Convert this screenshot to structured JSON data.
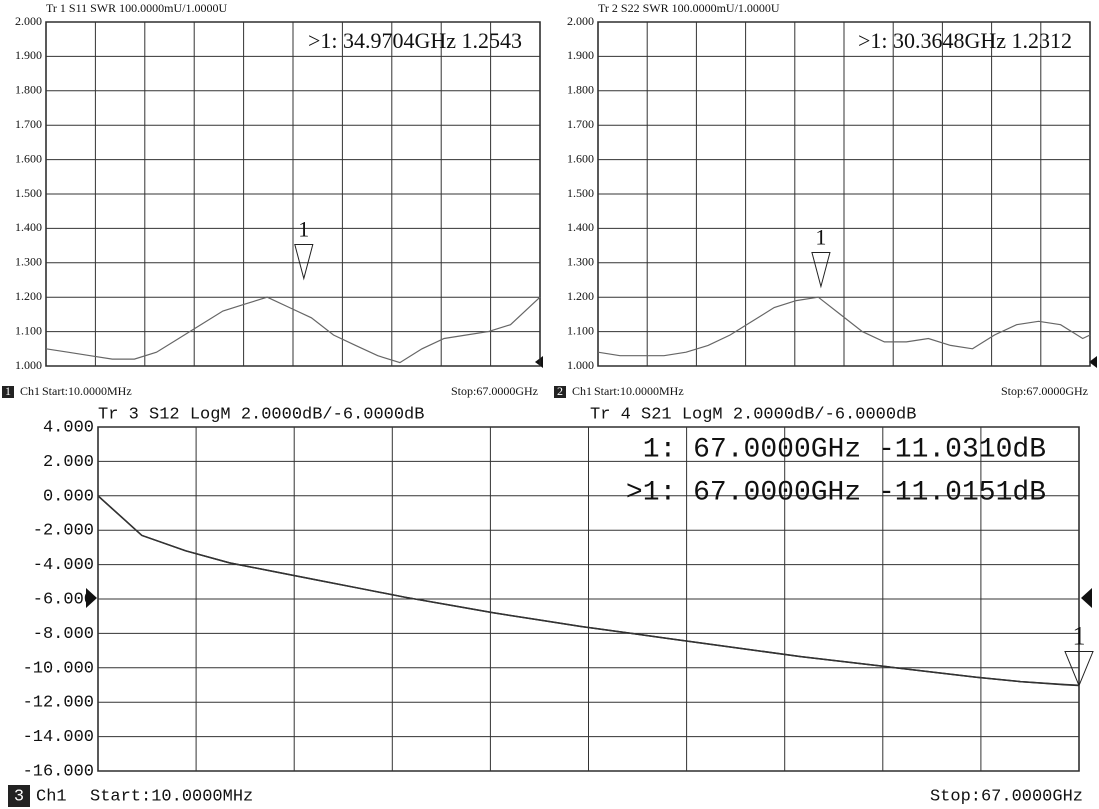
{
  "chart_data": [
    {
      "type": "line",
      "channel_number": "1",
      "channel": "Ch1",
      "start_label": "Start:10.0000MHz",
      "stop_label": "Stop:67.0000GHz",
      "x": [
        0.01,
        3,
        6,
        9,
        12,
        15,
        18,
        21,
        24,
        27,
        30,
        33,
        36,
        39,
        42,
        45,
        48,
        51,
        54,
        57,
        60,
        63,
        66,
        67
      ],
      "series": [
        {
          "name": "Tr 1  S11 SWR 100.0000mU/1.0000U",
          "color": "#666666",
          "values": [
            1.05,
            1.04,
            1.03,
            1.02,
            1.02,
            1.04,
            1.08,
            1.12,
            1.16,
            1.18,
            1.2,
            1.17,
            1.14,
            1.09,
            1.06,
            1.03,
            1.01,
            1.05,
            1.08,
            1.09,
            1.1,
            1.12,
            1.18,
            1.2
          ]
        }
      ],
      "marker": {
        "label": "1",
        "x": 34.9704,
        "value": 1.2543
      },
      "marker_readouts": [
        ">1:  34.9704GHz 1.2543"
      ],
      "xlim": [
        0.01,
        67
      ],
      "ylim": [
        1,
        2
      ],
      "yticks": [
        {
          "value": 1,
          "label": "1.000"
        },
        {
          "value": 1.1,
          "label": "1.100"
        },
        {
          "value": 1.2,
          "label": "1.200"
        },
        {
          "value": 1.3,
          "label": "1.300"
        },
        {
          "value": 1.4,
          "label": "1.400"
        },
        {
          "value": 1.5,
          "label": "1.500"
        },
        {
          "value": 1.6,
          "label": "1.600"
        },
        {
          "value": 1.7,
          "label": "1.700"
        },
        {
          "value": 1.8,
          "label": "1.800"
        },
        {
          "value": 1.9,
          "label": "1.900"
        },
        {
          "value": 2,
          "label": "2.000"
        }
      ],
      "grid": true
    },
    {
      "type": "line",
      "channel_number": "2",
      "channel": "Ch1",
      "start_label": "Start:10.0000MHz",
      "stop_label": "Stop:67.0000GHz",
      "x": [
        0.01,
        3,
        6,
        9,
        12,
        15,
        18,
        21,
        24,
        27,
        30,
        33,
        36,
        39,
        42,
        45,
        48,
        51,
        54,
        57,
        60,
        63,
        66,
        67
      ],
      "series": [
        {
          "name": "Tr 2  S22 SWR 100.0000mU/1.0000U",
          "color": "#666666",
          "values": [
            1.04,
            1.03,
            1.03,
            1.03,
            1.04,
            1.06,
            1.09,
            1.13,
            1.17,
            1.19,
            1.2,
            1.15,
            1.1,
            1.07,
            1.07,
            1.08,
            1.06,
            1.05,
            1.09,
            1.12,
            1.13,
            1.12,
            1.08,
            1.09
          ]
        }
      ],
      "marker": {
        "label": "1",
        "x": 30.3648,
        "value": 1.2312
      },
      "marker_readouts": [
        ">1:  30.3648GHz 1.2312"
      ],
      "xlim": [
        0.01,
        67
      ],
      "ylim": [
        1,
        2
      ],
      "yticks": [
        {
          "value": 1,
          "label": "1.000"
        },
        {
          "value": 1.1,
          "label": "1.100"
        },
        {
          "value": 1.2,
          "label": "1.200"
        },
        {
          "value": 1.3,
          "label": "1.300"
        },
        {
          "value": 1.4,
          "label": "1.400"
        },
        {
          "value": 1.5,
          "label": "1.500"
        },
        {
          "value": 1.6,
          "label": "1.600"
        },
        {
          "value": 1.7,
          "label": "1.700"
        },
        {
          "value": 1.8,
          "label": "1.800"
        },
        {
          "value": 1.9,
          "label": "1.900"
        },
        {
          "value": 2,
          "label": "2.000"
        }
      ],
      "grid": true
    },
    {
      "type": "line",
      "channel_number": "3",
      "channel": "Ch1",
      "start_label": "Start:10.0000MHz",
      "stop_label": "Stop:67.0000GHz",
      "x": [
        0.01,
        3,
        6,
        9,
        12,
        15,
        18,
        21,
        24,
        27,
        30,
        33,
        36,
        39,
        42,
        45,
        48,
        51,
        54,
        57,
        60,
        63,
        66,
        67
      ],
      "series": [
        {
          "name": "Tr 3  S12 LogM 2.0000dB/-6.0000dB",
          "color": "#222222",
          "values": [
            0,
            -2.3,
            -3.2,
            -3.9,
            -4.4,
            -4.9,
            -5.4,
            -5.9,
            -6.35,
            -6.8,
            -7.2,
            -7.6,
            -7.95,
            -8.3,
            -8.65,
            -9,
            -9.35,
            -9.65,
            -9.95,
            -10.25,
            -10.55,
            -10.8,
            -10.98,
            -11.031
          ]
        },
        {
          "name": "Tr 4  S21 LogM 2.0000dB/-6.0000dB",
          "color": "#333333",
          "values": [
            0,
            -2.3,
            -3.2,
            -3.9,
            -4.4,
            -4.9,
            -5.4,
            -5.9,
            -6.35,
            -6.8,
            -7.2,
            -7.6,
            -7.95,
            -8.3,
            -8.65,
            -9,
            -9.35,
            -9.65,
            -9.95,
            -10.25,
            -10.55,
            -10.8,
            -10.97,
            -11.0151
          ]
        }
      ],
      "marker": {
        "label": "1",
        "x": 67,
        "value": -11.031
      },
      "marker_readouts": [
        "1:   67.0000GHz -11.0310dB",
        ">1:   67.0000GHz -11.0151dB"
      ],
      "xlim": [
        0.01,
        67
      ],
      "ylim": [
        -16,
        4
      ],
      "yticks": [
        {
          "value": -16,
          "label": "-16.000"
        },
        {
          "value": -14,
          "label": "-14.000"
        },
        {
          "value": -12,
          "label": "-12.000"
        },
        {
          "value": -10,
          "label": "-10.000"
        },
        {
          "value": -8,
          "label": "-8.000"
        },
        {
          "value": -6,
          "label": "-6.000"
        },
        {
          "value": -4,
          "label": "-4.000"
        },
        {
          "value": -2,
          "label": "-2.000"
        },
        {
          "value": 0,
          "label": "0.000"
        },
        {
          "value": 2,
          "label": "2.000"
        },
        {
          "value": 4,
          "label": "4.000"
        }
      ],
      "grid": true
    }
  ]
}
